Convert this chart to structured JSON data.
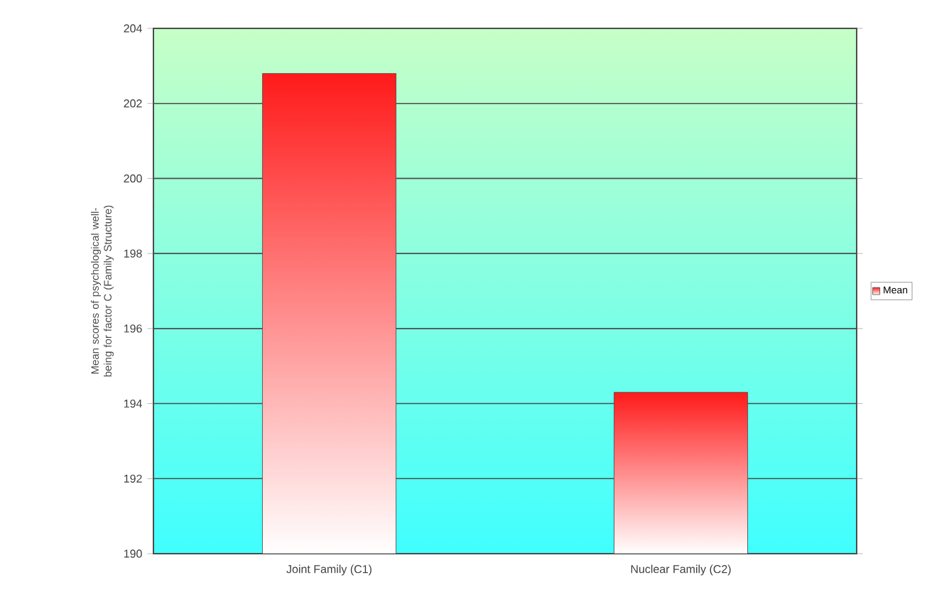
{
  "chart_data": {
    "type": "bar",
    "ylabel": "Mean scores of psychological well-being for factor C (Family Structure)",
    "categories": [
      "Joint Family (C1)",
      "Nuclear Family (C2)"
    ],
    "series": [
      {
        "name": "Mean",
        "color": "#ff1a1a",
        "values": [
          202.8,
          194.3
        ]
      }
    ],
    "ylim": [
      190,
      204
    ],
    "yticks": [
      190,
      192,
      194,
      196,
      198,
      200,
      202,
      204
    ],
    "grid": "y",
    "legend": "right"
  }
}
